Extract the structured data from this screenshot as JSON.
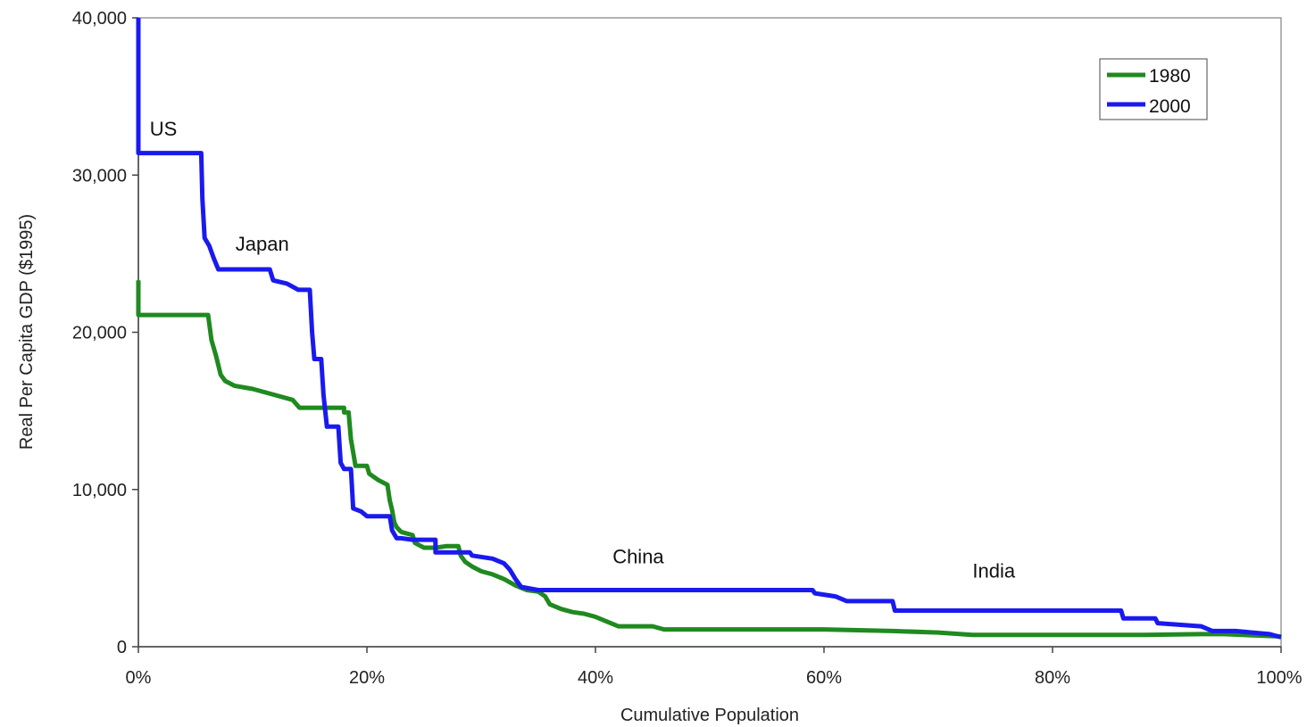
{
  "chart_data": {
    "type": "line",
    "title": "",
    "xlabel": "Cumulative Population",
    "ylabel": "Real Per Capita GDP ($1995)",
    "xlim": [
      0,
      100
    ],
    "ylim": [
      0,
      40000
    ],
    "x_ticks": [
      0,
      20,
      40,
      60,
      80,
      100
    ],
    "x_tick_labels": [
      "0%",
      "20%",
      "40%",
      "60%",
      "80%",
      "100%"
    ],
    "y_ticks": [
      0,
      10000,
      20000,
      30000,
      40000
    ],
    "y_tick_labels": [
      "0",
      "10,000",
      "20,000",
      "30,000",
      "40,000"
    ],
    "grid": false,
    "legend_position": "top-right",
    "series": [
      {
        "name": "1980",
        "color": "#1f8a1f",
        "points": [
          [
            0,
            23300
          ],
          [
            0,
            21100
          ],
          [
            6.1,
            21100
          ],
          [
            6.4,
            19500
          ],
          [
            6.8,
            18500
          ],
          [
            7.2,
            17300
          ],
          [
            7.6,
            16900
          ],
          [
            8.4,
            16600
          ],
          [
            10,
            16400
          ],
          [
            12,
            16000
          ],
          [
            13.5,
            15700
          ],
          [
            14.1,
            15200
          ],
          [
            18,
            15200
          ],
          [
            18,
            14900
          ],
          [
            18.4,
            14900
          ],
          [
            18.6,
            13200
          ],
          [
            19,
            11500
          ],
          [
            20,
            11500
          ],
          [
            20.2,
            11000
          ],
          [
            21,
            10600
          ],
          [
            21.8,
            10300
          ],
          [
            22,
            9300
          ],
          [
            22.2,
            8700
          ],
          [
            22.4,
            7900
          ],
          [
            22.6,
            7600
          ],
          [
            23,
            7300
          ],
          [
            24,
            7100
          ],
          [
            24.2,
            6600
          ],
          [
            25,
            6300
          ],
          [
            26,
            6300
          ],
          [
            27,
            6400
          ],
          [
            28,
            6400
          ],
          [
            28.2,
            5800
          ],
          [
            28.6,
            5400
          ],
          [
            29.2,
            5100
          ],
          [
            30,
            4800
          ],
          [
            31,
            4600
          ],
          [
            32,
            4300
          ],
          [
            33,
            3900
          ],
          [
            34,
            3600
          ],
          [
            35,
            3500
          ],
          [
            35.6,
            3200
          ],
          [
            36,
            2700
          ],
          [
            37,
            2400
          ],
          [
            38,
            2200
          ],
          [
            39,
            2100
          ],
          [
            40,
            1900
          ],
          [
            41,
            1600
          ],
          [
            42,
            1300
          ],
          [
            45,
            1300
          ],
          [
            46,
            1100
          ],
          [
            60,
            1100
          ],
          [
            66,
            1000
          ],
          [
            70,
            900
          ],
          [
            73,
            750
          ],
          [
            88,
            750
          ],
          [
            93,
            800
          ],
          [
            95,
            800
          ],
          [
            100,
            650
          ]
        ]
      },
      {
        "name": "2000",
        "color": "#1a1aee",
        "points": [
          [
            0,
            40000
          ],
          [
            0,
            31400
          ],
          [
            5.5,
            31400
          ],
          [
            5.6,
            28500
          ],
          [
            5.8,
            26000
          ],
          [
            6.2,
            25500
          ],
          [
            6.6,
            24700
          ],
          [
            7,
            24000
          ],
          [
            11.5,
            24000
          ],
          [
            11.8,
            23300
          ],
          [
            13,
            23100
          ],
          [
            14,
            22700
          ],
          [
            15,
            22700
          ],
          [
            15.2,
            20000
          ],
          [
            15.4,
            18300
          ],
          [
            16,
            18300
          ],
          [
            16.2,
            16000
          ],
          [
            16.5,
            14000
          ],
          [
            17.5,
            14000
          ],
          [
            17.7,
            11700
          ],
          [
            18,
            11300
          ],
          [
            18.6,
            11300
          ],
          [
            18.8,
            8800
          ],
          [
            19.5,
            8600
          ],
          [
            20,
            8300
          ],
          [
            22,
            8300
          ],
          [
            22.2,
            7400
          ],
          [
            22.6,
            6900
          ],
          [
            23,
            6900
          ],
          [
            24,
            6800
          ],
          [
            26,
            6800
          ],
          [
            26,
            6000
          ],
          [
            29,
            6000
          ],
          [
            29.2,
            5800
          ],
          [
            31,
            5600
          ],
          [
            32,
            5300
          ],
          [
            32.5,
            4900
          ],
          [
            33,
            4300
          ],
          [
            33.5,
            3800
          ],
          [
            35,
            3600
          ],
          [
            59,
            3600
          ],
          [
            59.2,
            3400
          ],
          [
            61,
            3200
          ],
          [
            62,
            2900
          ],
          [
            66,
            2900
          ],
          [
            66.2,
            2300
          ],
          [
            86,
            2300
          ],
          [
            86.2,
            1800
          ],
          [
            89,
            1800
          ],
          [
            89.2,
            1500
          ],
          [
            93,
            1300
          ],
          [
            94,
            1000
          ],
          [
            96,
            1000
          ],
          [
            99,
            800
          ],
          [
            100,
            600
          ]
        ]
      }
    ],
    "annotations": [
      {
        "text": "US",
        "x": 1.0,
        "y": 32500
      },
      {
        "text": "Japan",
        "x": 8.5,
        "y": 25200
      },
      {
        "text": "China",
        "x": 41.5,
        "y": 5300
      },
      {
        "text": "India",
        "x": 73.0,
        "y": 4400
      }
    ]
  }
}
